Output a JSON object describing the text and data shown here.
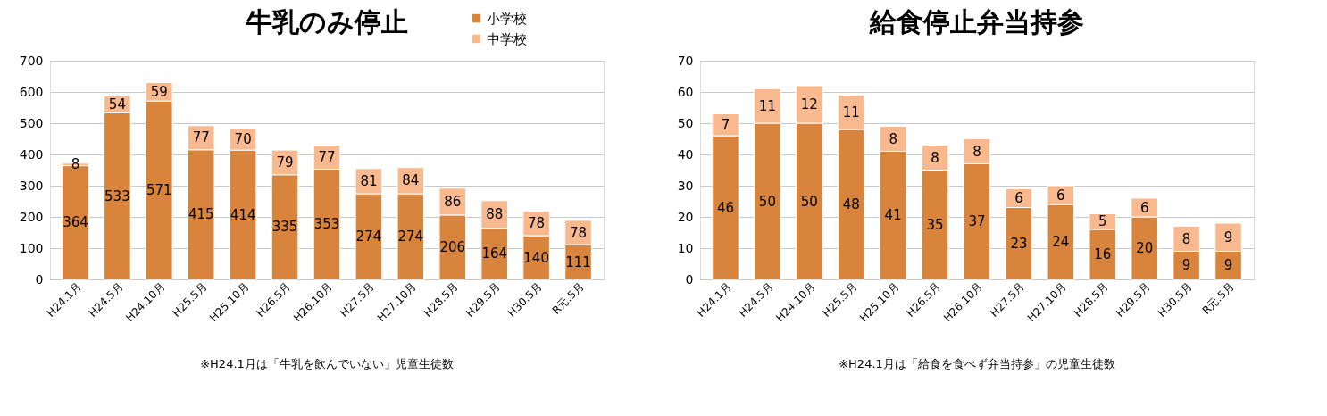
{
  "chart_data": [
    {
      "type": "bar",
      "title": "牛乳のみ停止",
      "stacked": true,
      "data_labels": true,
      "grid": "y",
      "legend": "top right",
      "categories": [
        "H24.1月",
        "H24.5月",
        "H24.10月",
        "H25.5月",
        "H25.10月",
        "H26.5月",
        "H26.10月",
        "H27.5月",
        "H27.10月",
        "H28.5月",
        "H29.5月",
        "H30.5月",
        "R元.5月"
      ],
      "series": [
        {
          "name": "小学校",
          "color": "#d9843d",
          "values": [
            364,
            533,
            571,
            415,
            414,
            335,
            353,
            274,
            274,
            206,
            164,
            140,
            111
          ]
        },
        {
          "name": "中学校",
          "color": "#f9b98e",
          "values": [
            8,
            54,
            59,
            77,
            70,
            79,
            77,
            81,
            84,
            86,
            88,
            78,
            78
          ]
        }
      ],
      "ylim": [
        0,
        700
      ],
      "yticks": [
        0,
        100,
        200,
        300,
        400,
        500,
        600,
        700
      ],
      "annotations": [
        "※H24.1月は「牛乳を飲んでいない」児童生徒数"
      ]
    },
    {
      "type": "bar",
      "title": "給食停止弁当持参",
      "stacked": true,
      "data_labels": true,
      "grid": "y",
      "legend": "top right",
      "categories": [
        "H24.1月",
        "H24.5月",
        "H24.10月",
        "H25.5月",
        "H25.10月",
        "H26.5月",
        "H26.10月",
        "H27.5月",
        "H27.10月",
        "H28.5月",
        "H29.5月",
        "H30.5月",
        "R元.5月"
      ],
      "series": [
        {
          "name": "小学校",
          "color": "#d9843d",
          "values": [
            46,
            50,
            50,
            48,
            41,
            35,
            37,
            23,
            24,
            16,
            20,
            9,
            9
          ]
        },
        {
          "name": "中学校",
          "color": "#f9b98e",
          "values": [
            7,
            11,
            12,
            11,
            8,
            8,
            8,
            6,
            6,
            5,
            6,
            8,
            9
          ]
        }
      ],
      "ylim": [
        0,
        70
      ],
      "yticks": [
        0,
        10,
        20,
        30,
        40,
        50,
        60,
        70
      ],
      "annotations": [
        "※H24.1月は「給食を食べず弁当持参」の児童生徒数"
      ]
    }
  ]
}
